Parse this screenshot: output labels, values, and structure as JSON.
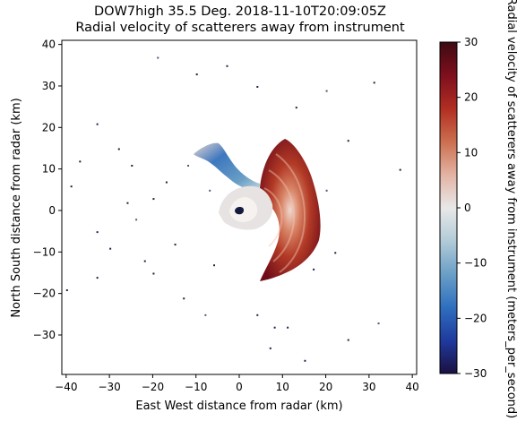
{
  "chart_data": {
    "type": "heatmap",
    "title": "DOW7high 35.5 Deg. 2018-11-10T20:09:05Z",
    "subtitle": "Radial velocity of scatterers away from instrument",
    "xlabel": "East West distance from radar (km)",
    "ylabel": "North South distance from radar (km)",
    "xlim": [
      -41,
      41
    ],
    "ylim": [
      -39.5,
      41
    ],
    "xticks": [
      "−40",
      "−30",
      "−20",
      "−10",
      "0",
      "10",
      "20",
      "30",
      "40"
    ],
    "xtick_values": [
      -40,
      -30,
      -20,
      -10,
      0,
      10,
      20,
      30,
      40
    ],
    "yticks": [
      "−30",
      "−20",
      "−10",
      "0",
      "10",
      "20",
      "30",
      "40"
    ],
    "ytick_values": [
      -30,
      -20,
      -10,
      0,
      10,
      20,
      30,
      40
    ],
    "colorbar": {
      "label": "Radial velocity of scatterers away from instrument (meters_per_second)",
      "min": -30,
      "max": 30,
      "ticks": [
        "−30",
        "−20",
        "−10",
        "0",
        "10",
        "20",
        "30"
      ],
      "tick_values": [
        -30,
        -20,
        -10,
        0,
        10,
        20,
        30
      ],
      "colors": [
        "#1a1040",
        "#1f3a9e",
        "#2f6fbf",
        "#6a9fc6",
        "#b2cbd8",
        "#e8e8e8",
        "#e2b3a3",
        "#cc6e4f",
        "#b02e22",
        "#7e0f1e",
        "#3d0a11"
      ]
    },
    "regions": [
      {
        "name": "receding-echo",
        "value": 22,
        "x": [
          3,
          18
        ],
        "y": [
          -17,
          17
        ]
      },
      {
        "name": "approaching-echo",
        "value": -15,
        "x": [
          -11,
          0
        ],
        "y": [
          6,
          16
        ]
      },
      {
        "name": "near-radar-zero-band",
        "value": 0,
        "x": [
          -5,
          5
        ],
        "y": [
          -2,
          6
        ]
      }
    ],
    "grid": false
  }
}
